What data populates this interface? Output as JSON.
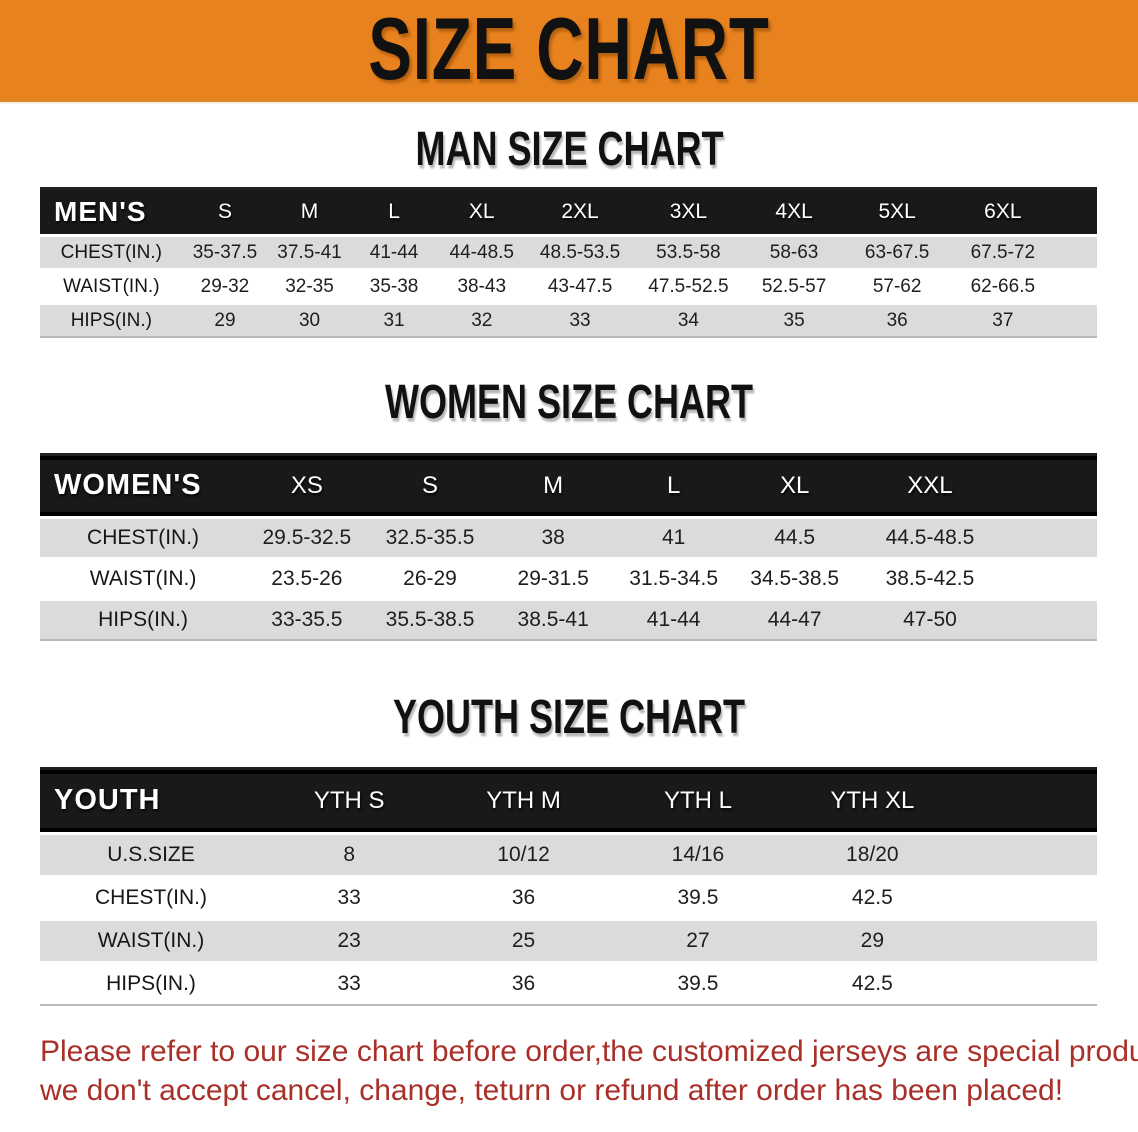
{
  "banner": {
    "title": "SIZE CHART",
    "bg_color": "#E8821E"
  },
  "sections": [
    {
      "title": "MAN SIZE CHART",
      "table": {
        "header": [
          "MEN'S",
          "S",
          "M",
          "L",
          "XL",
          "2XL",
          "3XL",
          "4XL",
          "5XL",
          "6XL"
        ],
        "rows": [
          {
            "label": "CHEST(IN.)",
            "values": [
              "35-37.5",
              "37.5-41",
              "41-44",
              "44-48.5",
              "48.5-53.5",
              "53.5-58",
              "58-63",
              "63-67.5",
              "67.5-72"
            ]
          },
          {
            "label": "WAIST(IN.)",
            "values": [
              "29-32",
              "32-35",
              "35-38",
              "38-43",
              "43-47.5",
              "47.5-52.5",
              "52.5-57",
              "57-62",
              "62-66.5"
            ]
          },
          {
            "label": "HIPS(IN.)",
            "values": [
              "29",
              "30",
              "31",
              "32",
              "33",
              "34",
              "35",
              "36",
              "37"
            ]
          }
        ]
      }
    },
    {
      "title": "WOMEN SIZE CHART",
      "table": {
        "header": [
          "WOMEN'S",
          "XS",
          "S",
          "M",
          "L",
          "XL",
          "XXL"
        ],
        "rows": [
          {
            "label": "CHEST(IN.)",
            "values": [
              "29.5-32.5",
              "32.5-35.5",
              "38",
              "41",
              "44.5",
              "44.5-48.5"
            ]
          },
          {
            "label": "WAIST(IN.)",
            "values": [
              "23.5-26",
              "26-29",
              "29-31.5",
              "31.5-34.5",
              "34.5-38.5",
              "38.5-42.5"
            ]
          },
          {
            "label": "HIPS(IN.)",
            "values": [
              "33-35.5",
              "35.5-38.5",
              "38.5-41",
              "41-44",
              "44-47",
              "47-50"
            ]
          }
        ]
      }
    },
    {
      "title": "YOUTH SIZE CHART",
      "table": {
        "header": [
          "YOUTH",
          "YTH S",
          "YTH M",
          "YTH L",
          "YTH XL"
        ],
        "rows": [
          {
            "label": "U.S.SIZE",
            "values": [
              "8",
              "10/12",
              "14/16",
              "18/20"
            ]
          },
          {
            "label": "CHEST(IN.)",
            "values": [
              "33",
              "36",
              "39.5",
              "42.5"
            ]
          },
          {
            "label": "WAIST(IN.)",
            "values": [
              "23",
              "25",
              "27",
              "29"
            ]
          },
          {
            "label": "HIPS(IN.)",
            "values": [
              "33",
              "36",
              "39.5",
              "42.5"
            ]
          }
        ]
      }
    }
  ],
  "footer": {
    "line1": "Please refer to our size chart before order,the customized jerseys are special products,",
    "line2": "we don't accept cancel, change, teturn or refund after order has been placed!",
    "text_color": "#A93028"
  }
}
